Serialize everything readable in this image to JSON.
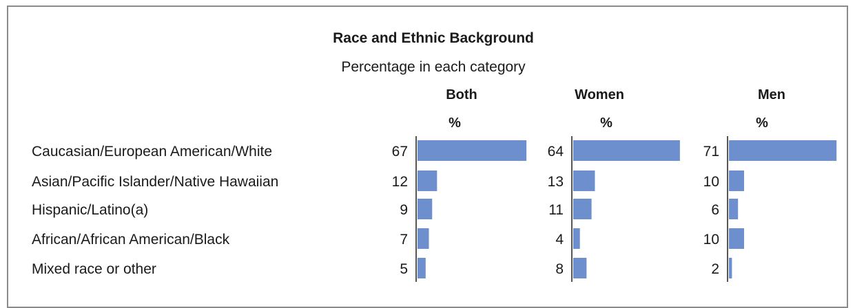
{
  "chart_data": {
    "type": "bar",
    "title": "Race and Ethnic Background",
    "subtitle": "Percentage in each category",
    "categories": [
      "Caucasian/European American/White",
      "Asian/Pacific Islander/Native Hawaiian",
      "Hispanic/Latino(a)",
      "African/African American/Black",
      "Mixed race or other"
    ],
    "series": [
      {
        "name": "Both",
        "unit": "%",
        "values": [
          67,
          12,
          9,
          7,
          5
        ]
      },
      {
        "name": "Women",
        "unit": "%",
        "values": [
          64,
          13,
          11,
          4,
          8
        ]
      },
      {
        "name": "Men",
        "unit": "%",
        "values": [
          71,
          10,
          6,
          10,
          2
        ]
      }
    ],
    "orientation": "horizontal",
    "bar_color": "#6d8fce",
    "axis_color": "#555555"
  }
}
